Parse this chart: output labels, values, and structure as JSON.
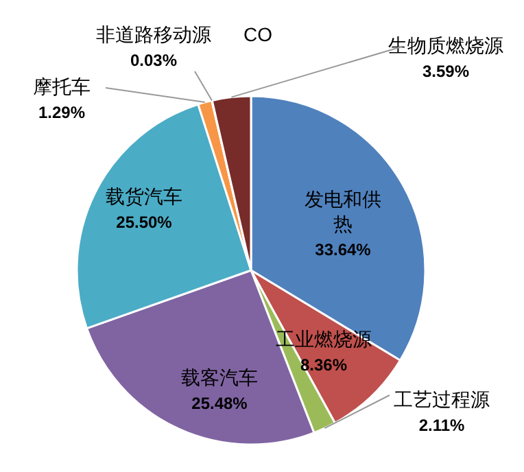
{
  "chart_data": {
    "type": "pie",
    "title": "CO",
    "categories": [
      "发电和供热",
      "工业燃烧源",
      "工艺过程源",
      "载客汽车",
      "载货汽车",
      "摩托车",
      "非道路移动源",
      "生物质燃烧源"
    ],
    "values": [
      33.64,
      8.36,
      2.11,
      25.48,
      25.5,
      1.29,
      0.03,
      3.59
    ],
    "value_labels": [
      "33.64%",
      "8.36%",
      "2.11%",
      "25.48%",
      "25.50%",
      "1.29%",
      "0.03%",
      "3.59%"
    ],
    "colors": [
      "#4f81bd",
      "#c0504d",
      "#9bbb59",
      "#8064a2",
      "#4bacc6",
      "#f79646",
      "#2c4d75",
      "#772c2a"
    ]
  }
}
